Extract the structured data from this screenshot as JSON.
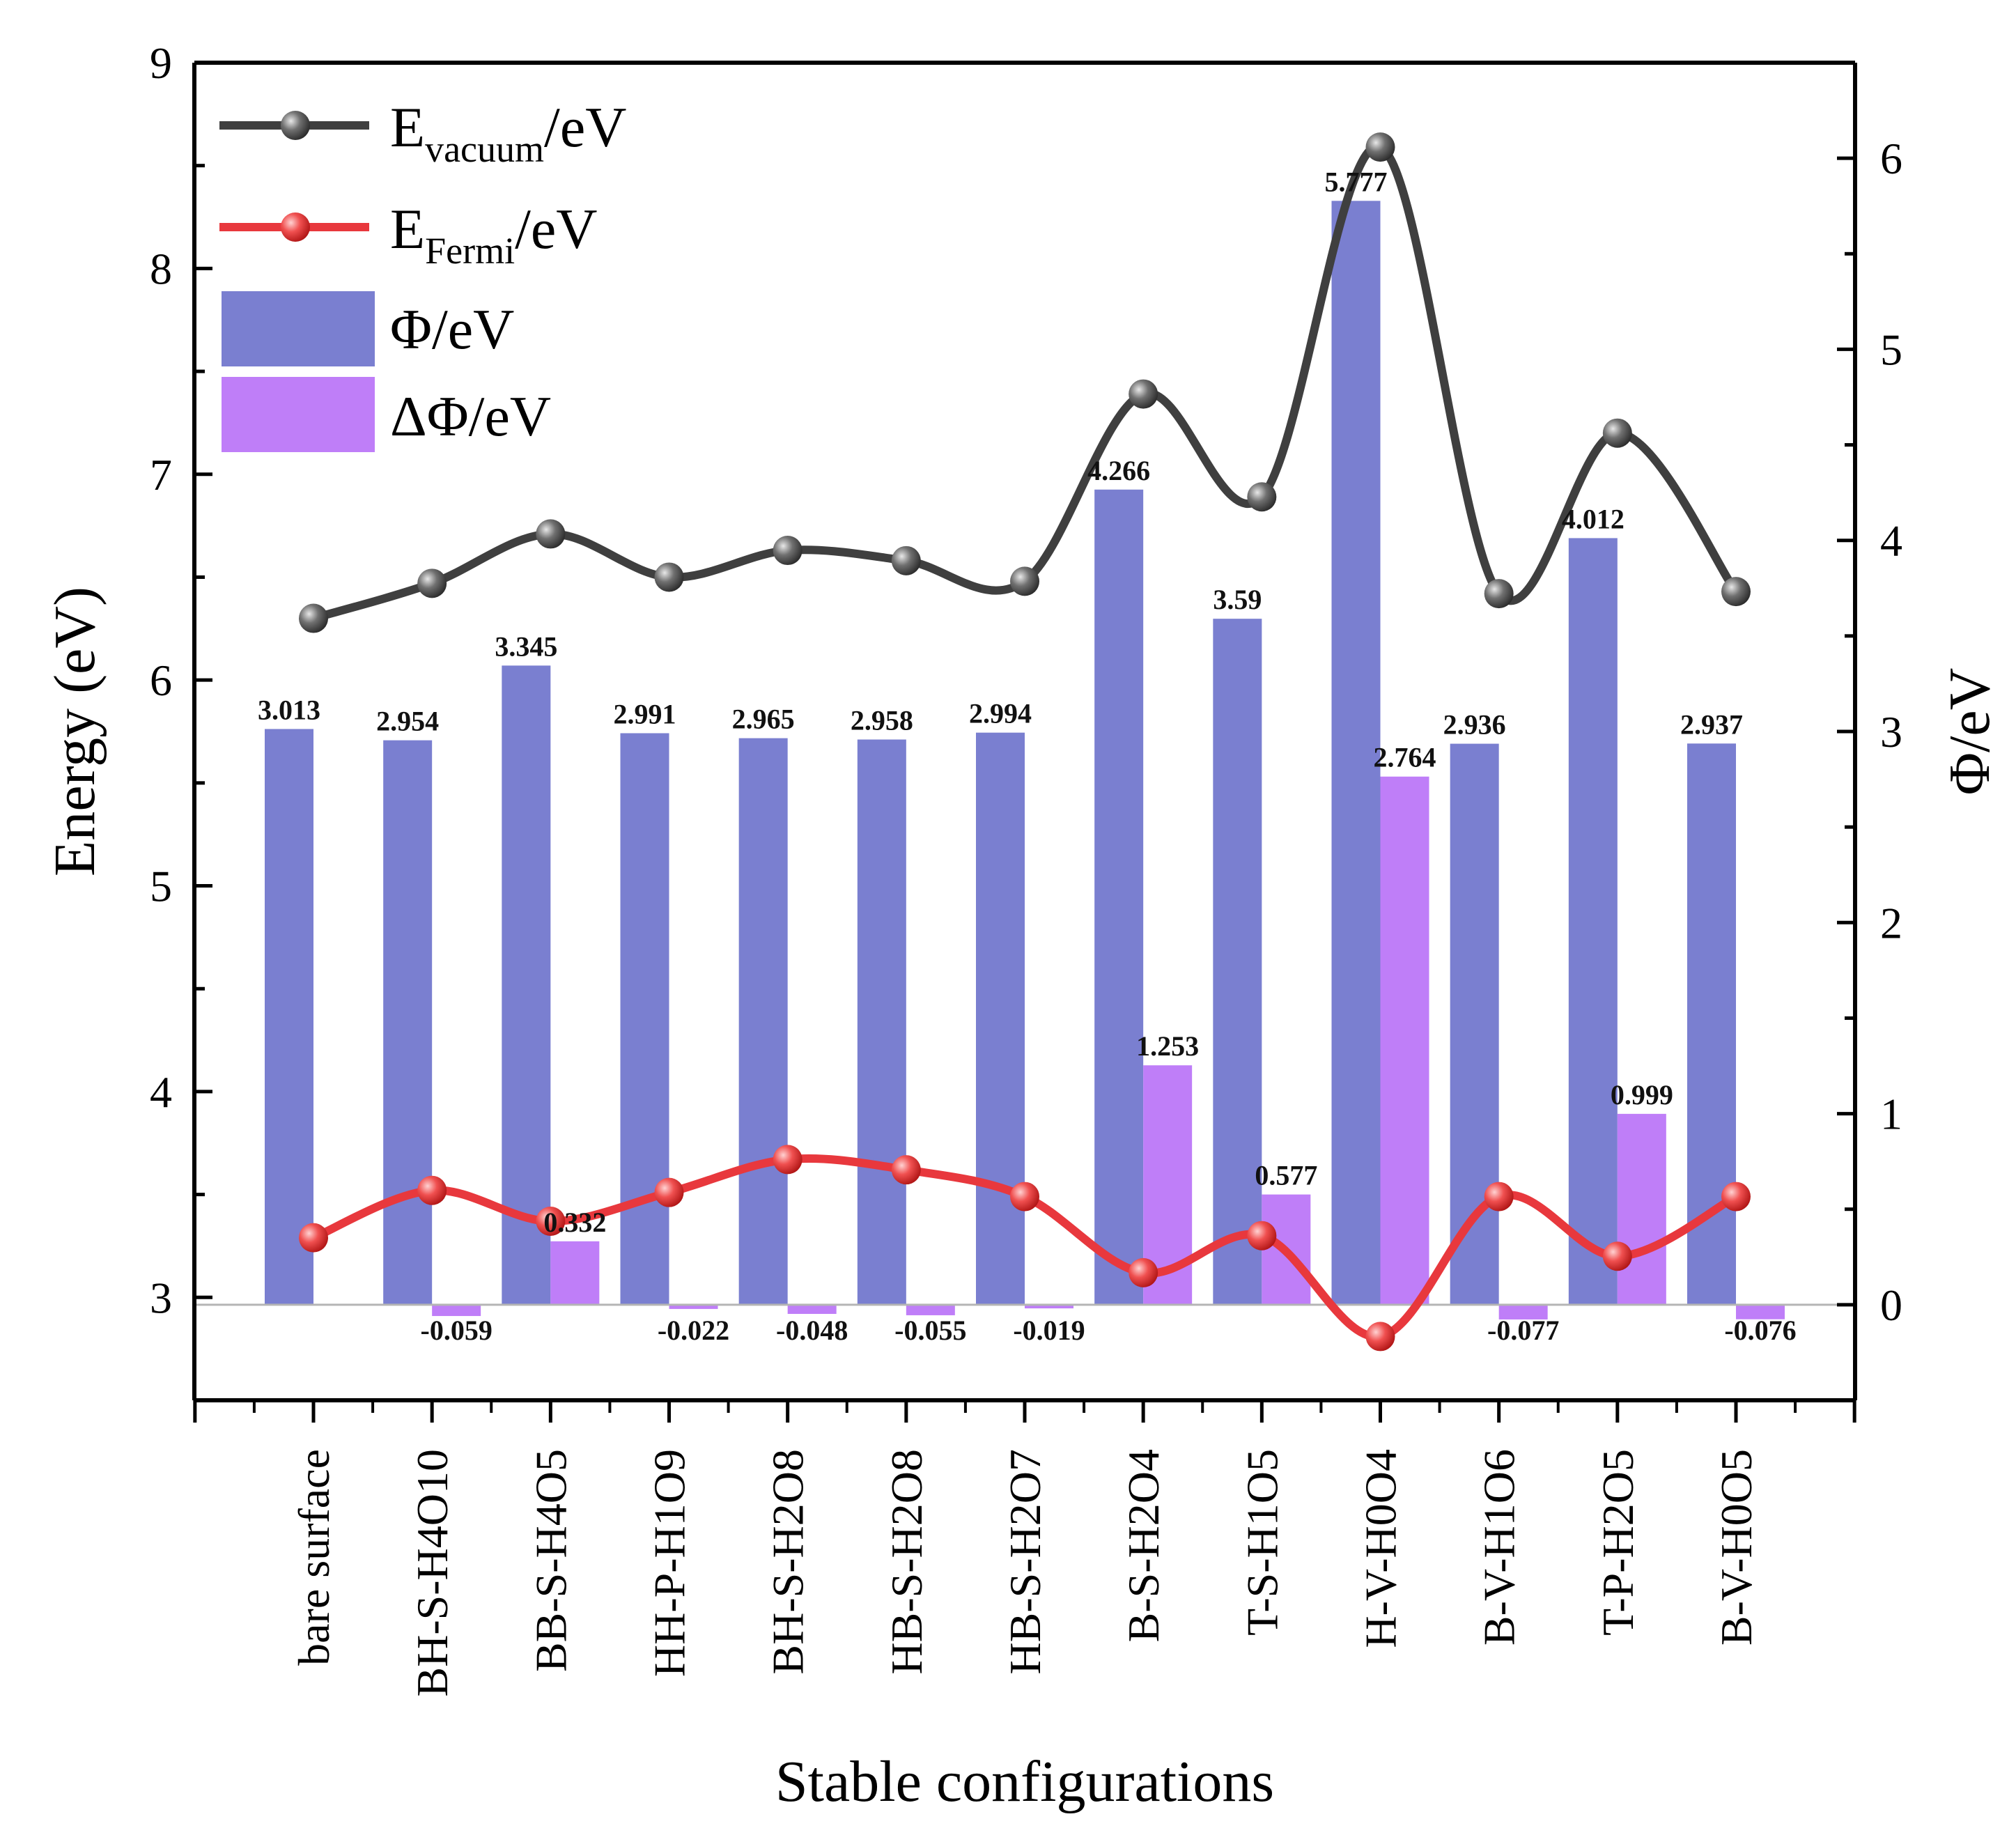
{
  "chart_data": {
    "type": "bar",
    "xlabel": "Stable configurations",
    "ylabel_left": "Energy (eV)",
    "ylabel_right": "Φ/eV",
    "ylim_left": [
      2.5,
      9
    ],
    "ylim_right": [
      -0.5,
      6.5
    ],
    "left_ticks": [
      "3",
      "4",
      "5",
      "6",
      "7",
      "8",
      "9"
    ],
    "right_ticks": [
      "0",
      "1",
      "2",
      "3",
      "4",
      "5",
      "6"
    ],
    "categories": [
      "bare surface",
      "BH-S-H4O10",
      "BB-S-H4O5",
      "HH-P-H1O9",
      "BH-S-H2O8",
      "HB-S-H2O8",
      "HB-S-H2O7",
      "B-S-H2O4",
      "T-S-H1O5",
      "H-V-H0O4",
      "B-V-H1O6",
      "T-P-H2O5",
      "B-V-H0O5"
    ],
    "series": [
      {
        "name": "E_vacuum/eV",
        "legend_main": "E",
        "legend_sub": "vacuum",
        "legend_tail": "/eV",
        "kind": "line",
        "axis": "left",
        "color": "#3f3f3f",
        "marker_color": "#5a5a5a",
        "values": [
          6.3,
          6.47,
          6.71,
          6.5,
          6.63,
          6.58,
          6.48,
          7.39,
          6.89,
          8.59,
          6.42,
          7.2,
          6.43
        ]
      },
      {
        "name": "E_Fermi/eV",
        "legend_main": "E",
        "legend_sub": "Fermi",
        "legend_tail": "/eV",
        "kind": "line",
        "axis": "left",
        "color": "#e8383d",
        "marker_color": "#e8383d",
        "values": [
          3.29,
          3.52,
          3.37,
          3.51,
          3.67,
          3.62,
          3.49,
          3.12,
          3.3,
          2.81,
          3.49,
          3.2,
          3.49
        ]
      },
      {
        "name": "Φ/eV",
        "kind": "bar",
        "axis": "right",
        "color": "#7a7fd0",
        "values": [
          3.013,
          2.954,
          3.345,
          2.991,
          2.965,
          2.958,
          2.994,
          4.266,
          3.59,
          5.777,
          2.936,
          4.012,
          2.937
        ],
        "labels": [
          "3.013",
          "2.954",
          "3.345",
          "2.991",
          "2.965",
          "2.958",
          "2.994",
          "4.266",
          "3.59",
          "5.777",
          "2.936",
          "4.012",
          "2.937"
        ]
      },
      {
        "name": "ΔΦ/eV",
        "kind": "bar",
        "axis": "right",
        "color": "#bf7ef8",
        "values": [
          null,
          -0.059,
          0.332,
          -0.022,
          -0.048,
          -0.055,
          -0.019,
          1.253,
          0.577,
          2.764,
          -0.077,
          0.999,
          -0.076
        ],
        "labels": [
          "",
          "-0.059",
          "0.332",
          "-0.022",
          "-0.048",
          "-0.055",
          "-0.019",
          "1.253",
          "0.577",
          "2.764",
          "-0.077",
          "0.999",
          "-0.076"
        ]
      }
    ],
    "legend_position": "top-left"
  }
}
